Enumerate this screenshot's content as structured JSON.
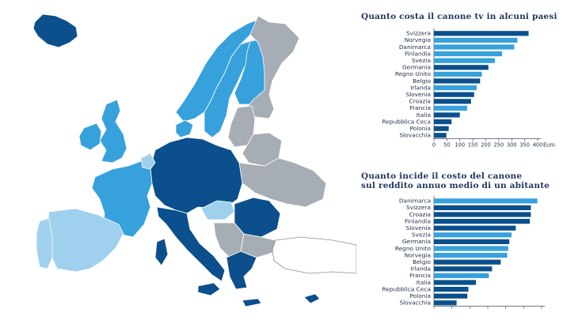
{
  "map": {
    "colors": {
      "sea": "#ffffff",
      "border": "#ffffff",
      "dark": "#0b4f8c",
      "mid": "#1b87c9",
      "light": "#37a1dc",
      "pale": "#9fd0ee",
      "grey": "#a7adb5",
      "outline": "#8a8f96"
    }
  },
  "chart_data": [
    {
      "type": "bar",
      "orientation": "horizontal",
      "title": "Quanto costa il canone tv in alcuni paesi",
      "categories": [
        "Svizzera",
        "Norvegia",
        "Danimarca",
        "Finlandia",
        "Svezia",
        "Germania",
        "Regno Unito",
        "Belgio",
        "Irlanda",
        "Slovenia",
        "Croazia",
        "Francia",
        "Italia",
        "Repubblica Ceca",
        "Polonia",
        "Slovacchia"
      ],
      "values": [
        365,
        322,
        310,
        263,
        235,
        210,
        185,
        178,
        165,
        155,
        143,
        128,
        100,
        68,
        57,
        48
      ],
      "bar_colors": [
        "#0b4f8c",
        "#37a1dc",
        "#37a1dc",
        "#37a1dc",
        "#37a1dc",
        "#0b4f8c",
        "#37a1dc",
        "#0b4f8c",
        "#37a1dc",
        "#0b4f8c",
        "#0b4f8c",
        "#37a1dc",
        "#0b4f8c",
        "#0b4f8c",
        "#0b4f8c",
        "#0b4f8c"
      ],
      "xticks": [
        "0",
        "50",
        "100",
        "150",
        "200",
        "250",
        "300",
        "350",
        "400"
      ],
      "xlim": [
        0,
        400
      ],
      "xunit": "Euro"
    },
    {
      "type": "bar",
      "orientation": "horizontal",
      "title": "Quanto incide il costo del canone sul reddito annuo medio di un abitante",
      "title_lines": [
        "Quanto incide il costo del canone",
        "sul reddito annuo medio di un abitante"
      ],
      "categories": [
        "Danimarca",
        "Svizzera",
        "Croazia",
        "Finlandia",
        "Slovenia",
        "Svezia",
        "Germania",
        "Regno Unito",
        "Norvegia",
        "Belgio",
        "Irlanda",
        "Francia",
        "Italia",
        "Repubblica Ceca",
        "Polonia",
        "Slovacchia"
      ],
      "values": [
        0.96,
        0.9,
        0.9,
        0.89,
        0.76,
        0.72,
        0.7,
        0.69,
        0.68,
        0.62,
        0.54,
        0.51,
        0.39,
        0.32,
        0.31,
        0.21
      ],
      "bar_colors": [
        "#37a1dc",
        "#0b4f8c",
        "#0b4f8c",
        "#0b4f8c",
        "#0b4f8c",
        "#37a1dc",
        "#0b4f8c",
        "#37a1dc",
        "#37a1dc",
        "#0b4f8c",
        "#0b4f8c",
        "#37a1dc",
        "#0b4f8c",
        "#0b4f8c",
        "#0b4f8c",
        "#0b4f8c"
      ],
      "xlim": [
        0,
        1
      ]
    }
  ]
}
